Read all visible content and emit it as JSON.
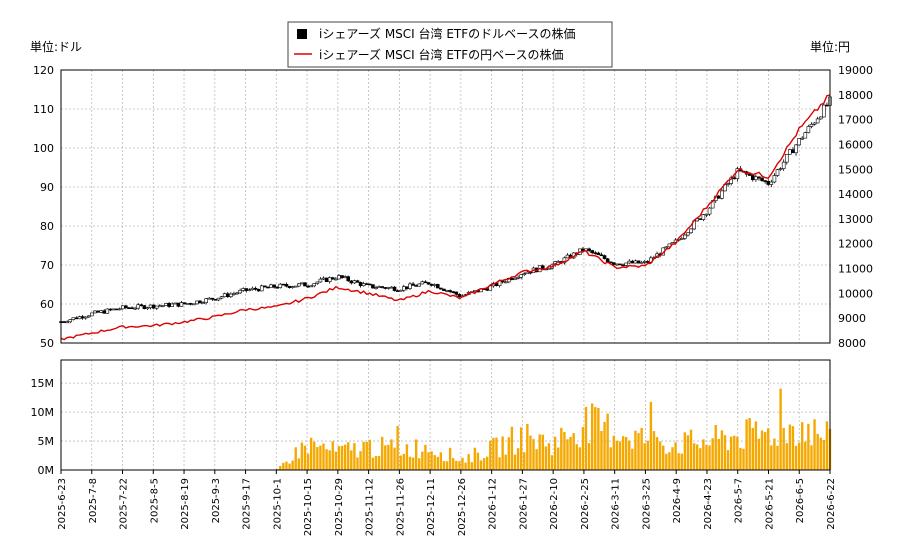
{
  "legend": {
    "items": [
      {
        "label": "iシェアーズ MSCI 台湾 ETFのドルベースの株価",
        "color": "#000000",
        "marker": "square"
      },
      {
        "label": "iシェアーズ MSCI 台湾 ETFの円ベースの株価",
        "color": "#dd0000",
        "marker": "line"
      }
    ]
  },
  "unit_left": "単位:ドル",
  "unit_right": "単位:円",
  "chart_data": [
    {
      "type": "line",
      "title": "",
      "y_left": {
        "ylim": [
          50,
          120
        ],
        "ticks": [
          50,
          60,
          70,
          80,
          90,
          100,
          110,
          120
        ]
      },
      "y_right": {
        "ylim": [
          8000,
          19000
        ],
        "ticks": [
          8000,
          9000,
          10000,
          11000,
          12000,
          13000,
          14000,
          15000,
          16000,
          17000,
          18000,
          19000
        ]
      },
      "x_ticks": [
        "2025-6-23",
        "2025-7-8",
        "2025-7-22",
        "2025-8-5",
        "2025-8-19",
        "2025-9-3",
        "2025-9-17",
        "2025-10-1",
        "2025-10-15",
        "2025-10-29",
        "2025-11-12",
        "2025-11-26",
        "2025-12-11",
        "2025-12-26",
        "2026-1-12",
        "2026-1-27",
        "2026-2-10",
        "2026-2-25",
        "2026-3-11",
        "2026-3-25",
        "2026-4-9",
        "2026-4-23",
        "2026-5-7",
        "2026-5-21",
        "2026-6-5",
        "2026-6-22"
      ],
      "grid": true,
      "series": [
        {
          "name": "iシェアーズ MSCI 台湾 ETFのドルベースの株価",
          "axis": "left",
          "color": "#000000",
          "style": "candlestick",
          "x": [
            "2025-6-23",
            "2025-7-8",
            "2025-7-22",
            "2025-8-5",
            "2025-8-19",
            "2025-9-3",
            "2025-9-17",
            "2025-10-1",
            "2025-10-15",
            "2025-10-29",
            "2025-11-12",
            "2025-11-26",
            "2025-12-11",
            "2025-12-26",
            "2026-1-12",
            "2026-1-27",
            "2026-2-10",
            "2026-2-25",
            "2026-3-11",
            "2026-3-25",
            "2026-4-9",
            "2026-4-23",
            "2026-5-7",
            "2026-5-21",
            "2026-6-5",
            "2026-6-22"
          ],
          "values": [
            55.5,
            57.5,
            59.0,
            59.5,
            60.0,
            61.5,
            63.5,
            64.5,
            65.0,
            67.0,
            64.5,
            64.0,
            65.5,
            62.0,
            64.5,
            68.0,
            70.0,
            74.0,
            70.5,
            70.5,
            76.0,
            84.0,
            94.0,
            91.0,
            102.0,
            112.0
          ]
        },
        {
          "name": "iシェアーズ MSCI 台湾 ETFの円ベースの株価",
          "axis": "right",
          "color": "#dd0000",
          "style": "line",
          "x": [
            "2025-6-23",
            "2025-7-8",
            "2025-7-22",
            "2025-8-5",
            "2025-8-19",
            "2025-9-3",
            "2025-9-17",
            "2025-10-1",
            "2025-10-15",
            "2025-10-29",
            "2025-11-12",
            "2025-11-26",
            "2025-12-11",
            "2025-12-26",
            "2026-1-12",
            "2026-1-27",
            "2026-2-10",
            "2026-2-25",
            "2026-3-11",
            "2026-3-25",
            "2026-4-9",
            "2026-4-23",
            "2026-5-7",
            "2026-5-21",
            "2026-6-5",
            "2026-6-22"
          ],
          "values": [
            8150,
            8400,
            8650,
            8700,
            8850,
            9050,
            9350,
            9450,
            9800,
            10250,
            10000,
            9700,
            10100,
            9800,
            10350,
            10850,
            11100,
            11700,
            11050,
            11100,
            12050,
            13500,
            15000,
            14700,
            16600,
            18000
          ]
        }
      ]
    },
    {
      "type": "bar",
      "title": "",
      "ylim": [
        0,
        19000000
      ],
      "y_ticks": [
        "0M",
        "5M",
        "10M",
        "15M"
      ],
      "y_tick_values": [
        0,
        5000000,
        10000000,
        15000000
      ],
      "color": "#f5a800",
      "x_ticks": [
        "2025-6-23",
        "2025-7-8",
        "2025-7-22",
        "2025-8-5",
        "2025-8-19",
        "2025-9-3",
        "2025-9-17",
        "2025-10-1",
        "2025-10-15",
        "2025-10-29",
        "2025-11-12",
        "2025-11-26",
        "2025-12-11",
        "2025-12-26",
        "2026-1-12",
        "2026-1-27",
        "2026-2-10",
        "2026-2-25",
        "2026-3-11",
        "2026-3-25",
        "2026-4-9",
        "2026-4-23",
        "2026-5-7",
        "2026-5-21",
        "2026-6-5",
        "2026-6-22"
      ],
      "series": [
        {
          "name": "",
          "x": [
            "2025-6-23",
            "2025-7-8",
            "2025-7-22",
            "2025-8-5",
            "2025-8-19",
            "2025-9-3",
            "2025-9-17",
            "2025-10-1",
            "2025-10-15",
            "2025-10-29",
            "2025-11-12",
            "2025-11-26",
            "2025-12-11",
            "2025-12-26",
            "2026-1-12",
            "2026-1-27",
            "2026-2-10",
            "2026-2-25",
            "2026-3-11",
            "2026-3-25",
            "2026-4-9",
            "2026-4-23",
            "2026-5-7",
            "2026-5-21",
            "2026-6-5",
            "2026-6-22"
          ],
          "values": [
            0,
            0,
            0,
            0,
            0,
            0,
            0,
            0,
            5000000,
            3500000,
            4500000,
            4000000,
            4500000,
            2000000,
            4000000,
            6500000,
            5000000,
            9000000,
            7500000,
            6000000,
            5000000,
            5500000,
            6500000,
            7000000,
            8500000,
            6000000
          ]
        }
      ]
    }
  ]
}
